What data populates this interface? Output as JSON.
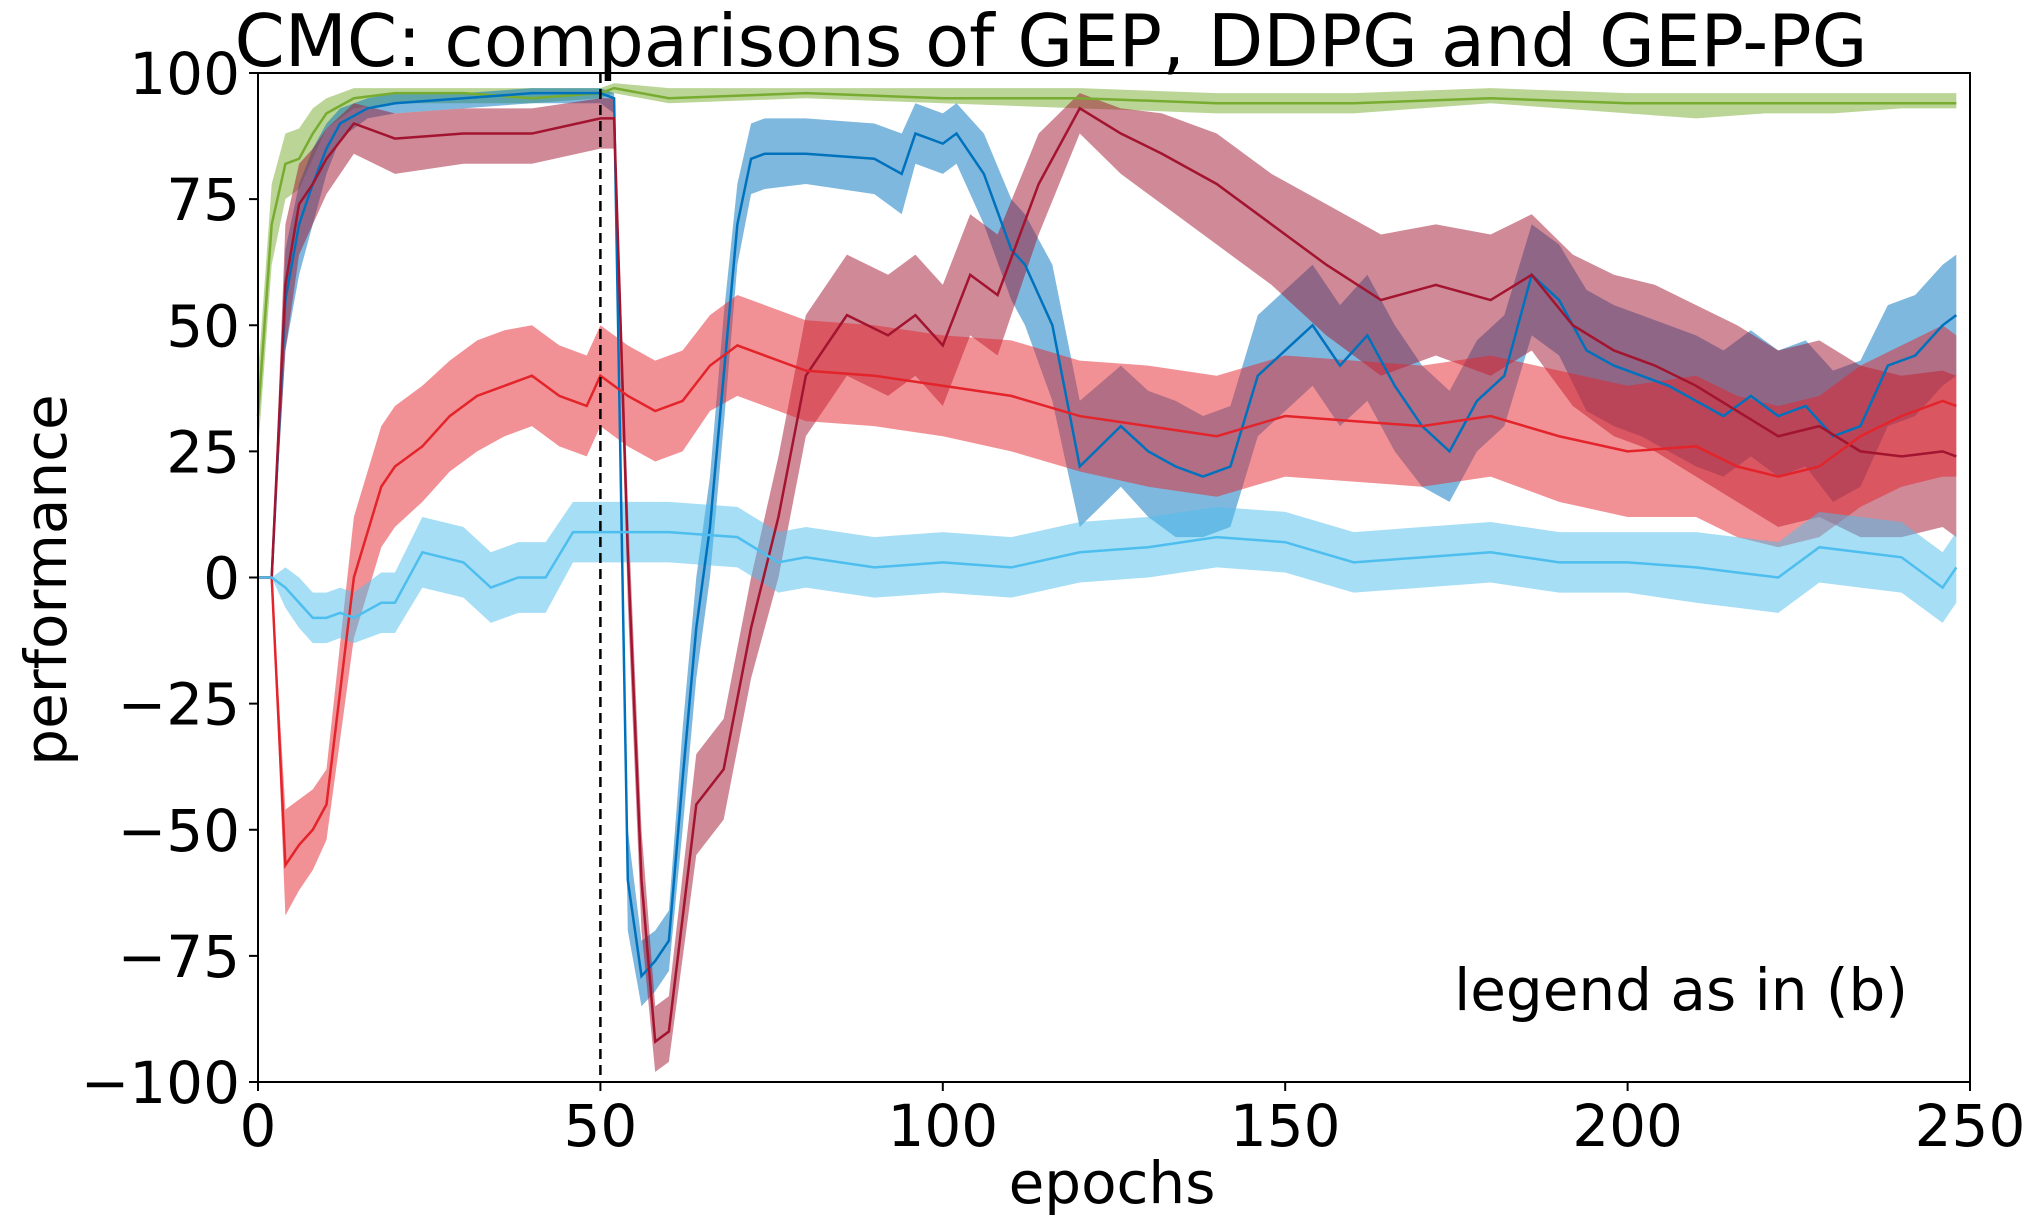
{
  "chart_data": {
    "type": "line",
    "title": "CMC: comparisons of GEP, DDPG and GEP-PG",
    "xlabel": "epochs",
    "ylabel": "performance",
    "xlim": [
      0,
      250
    ],
    "ylim": [
      -100,
      100
    ],
    "xticks": [
      0,
      50,
      100,
      150,
      200,
      250
    ],
    "xtick_labels": [
      "0",
      "50",
      "100",
      "150",
      "200",
      "250"
    ],
    "yticks": [
      -100,
      -75,
      -50,
      -25,
      0,
      25,
      50,
      75,
      100
    ],
    "ytick_labels": [
      "−100",
      "−75",
      "−50",
      "−25",
      "0",
      "25",
      "50",
      "75",
      "100"
    ],
    "vline_x": 50,
    "annotation": "legend as in (b)",
    "grid": false,
    "series": [
      {
        "color": "#77ac30",
        "x": [
          0,
          2,
          4,
          6,
          8,
          10,
          14,
          20,
          30,
          40,
          50,
          52,
          60,
          80,
          100,
          120,
          140,
          160,
          180,
          200,
          210,
          220,
          230,
          240,
          248
        ],
        "y": [
          32,
          70,
          82,
          83,
          88,
          92,
          95,
          96,
          96,
          95,
          96,
          97,
          95,
          96,
          95,
          95,
          94,
          94,
          95,
          94,
          94,
          94,
          94,
          94,
          94
        ],
        "lower": [
          25,
          62,
          75,
          77,
          83,
          89,
          93,
          94,
          94,
          94,
          95,
          96,
          94,
          95,
          94,
          93,
          92,
          92,
          94,
          92,
          91,
          92,
          92,
          93,
          93
        ],
        "upper": [
          40,
          78,
          88,
          89,
          93,
          95,
          97,
          97,
          97,
          97,
          97,
          98,
          97,
          97,
          97,
          97,
          96,
          96,
          97,
          96,
          96,
          96,
          96,
          96,
          96
        ]
      },
      {
        "color": "#0072bd",
        "x": [
          0,
          2,
          4,
          6,
          8,
          10,
          12,
          16,
          20,
          30,
          40,
          50,
          52,
          54,
          56,
          58,
          60,
          62,
          64,
          66,
          68,
          70,
          72,
          74,
          80,
          90,
          94,
          96,
          100,
          102,
          106,
          110,
          112,
          116,
          120,
          126,
          130,
          134,
          138,
          142,
          146,
          150,
          154,
          158,
          162,
          166,
          170,
          174,
          178,
          182,
          186,
          190,
          194,
          198,
          202,
          206,
          210,
          214,
          218,
          222,
          226,
          230,
          234,
          238,
          242,
          246,
          248
        ],
        "y": [
          0,
          0,
          55,
          70,
          78,
          85,
          90,
          93,
          94,
          95,
          96,
          96,
          95,
          -60,
          -79,
          -76,
          -72,
          -40,
          -10,
          10,
          40,
          70,
          83,
          84,
          84,
          83,
          80,
          88,
          86,
          88,
          80,
          65,
          62,
          50,
          22,
          30,
          25,
          22,
          20,
          22,
          40,
          45,
          50,
          42,
          48,
          38,
          30,
          25,
          35,
          40,
          60,
          55,
          45,
          42,
          40,
          38,
          35,
          32,
          36,
          32,
          34,
          28,
          30,
          42,
          44,
          50,
          52
        ],
        "lower": [
          0,
          0,
          45,
          60,
          70,
          80,
          87,
          91,
          92,
          93,
          94,
          94,
          92,
          -70,
          -85,
          -82,
          -78,
          -50,
          -20,
          0,
          30,
          62,
          76,
          77,
          78,
          76,
          72,
          82,
          80,
          82,
          70,
          55,
          50,
          35,
          10,
          18,
          12,
          8,
          8,
          10,
          28,
          33,
          38,
          30,
          35,
          25,
          18,
          15,
          25,
          30,
          48,
          44,
          33,
          30,
          28,
          25,
          22,
          20,
          24,
          20,
          22,
          15,
          18,
          30,
          32,
          38,
          40
        ],
        "upper": [
          0,
          0,
          65,
          78,
          85,
          90,
          93,
          95,
          96,
          96,
          97,
          97,
          96,
          -50,
          -72,
          -70,
          -66,
          -30,
          0,
          20,
          52,
          78,
          90,
          91,
          91,
          90,
          88,
          94,
          92,
          94,
          88,
          75,
          72,
          62,
          35,
          42,
          37,
          35,
          32,
          34,
          52,
          57,
          62,
          54,
          60,
          50,
          42,
          37,
          47,
          52,
          70,
          66,
          57,
          54,
          52,
          50,
          48,
          45,
          49,
          45,
          47,
          41,
          43,
          54,
          56,
          62,
          64
        ]
      },
      {
        "color": "#a2142f",
        "x": [
          0,
          2,
          4,
          6,
          8,
          10,
          14,
          20,
          30,
          40,
          50,
          52,
          54,
          56,
          58,
          60,
          64,
          68,
          72,
          76,
          80,
          86,
          92,
          96,
          100,
          104,
          108,
          114,
          120,
          126,
          132,
          140,
          148,
          156,
          164,
          172,
          180,
          186,
          192,
          198,
          204,
          210,
          216,
          222,
          228,
          234,
          240,
          246,
          248
        ],
        "y": [
          0,
          0,
          58,
          74,
          78,
          83,
          90,
          87,
          88,
          88,
          91,
          91,
          5,
          -60,
          -92,
          -90,
          -45,
          -38,
          -10,
          12,
          40,
          52,
          48,
          52,
          46,
          60,
          56,
          78,
          93,
          88,
          84,
          78,
          70,
          62,
          55,
          58,
          55,
          60,
          50,
          45,
          42,
          38,
          33,
          28,
          30,
          25,
          24,
          25,
          24
        ],
        "lower": [
          0,
          0,
          45,
          64,
          70,
          76,
          84,
          80,
          82,
          82,
          85,
          85,
          -5,
          -70,
          -98,
          -96,
          -55,
          -48,
          -20,
          0,
          28,
          40,
          36,
          40,
          34,
          48,
          44,
          68,
          88,
          80,
          74,
          66,
          58,
          48,
          40,
          44,
          40,
          45,
          34,
          28,
          25,
          20,
          15,
          10,
          12,
          8,
          8,
          10,
          8
        ],
        "upper": [
          0,
          0,
          70,
          82,
          85,
          89,
          94,
          92,
          93,
          93,
          95,
          95,
          15,
          -50,
          -85,
          -83,
          -35,
          -28,
          0,
          24,
          52,
          64,
          60,
          64,
          58,
          72,
          68,
          88,
          96,
          93,
          92,
          88,
          80,
          74,
          68,
          70,
          68,
          72,
          64,
          60,
          58,
          54,
          50,
          45,
          47,
          42,
          40,
          41,
          40
        ]
      },
      {
        "color": "#e3242b",
        "x": [
          0,
          2,
          4,
          6,
          8,
          10,
          14,
          18,
          20,
          24,
          28,
          32,
          36,
          40,
          44,
          48,
          50,
          54,
          58,
          62,
          66,
          70,
          74,
          80,
          90,
          100,
          110,
          120,
          130,
          140,
          150,
          160,
          170,
          180,
          190,
          200,
          210,
          216,
          222,
          228,
          234,
          240,
          246,
          248
        ],
        "y": [
          0,
          0,
          -57,
          -53,
          -50,
          -45,
          0,
          18,
          22,
          26,
          32,
          36,
          38,
          40,
          36,
          34,
          40,
          36,
          33,
          35,
          42,
          46,
          44,
          41,
          40,
          38,
          36,
          32,
          30,
          28,
          32,
          31,
          30,
          32,
          28,
          25,
          26,
          22,
          20,
          22,
          28,
          32,
          35,
          34
        ],
        "lower": [
          0,
          0,
          -67,
          -62,
          -58,
          -52,
          -12,
          6,
          10,
          15,
          21,
          25,
          28,
          30,
          26,
          24,
          30,
          26,
          23,
          25,
          33,
          36,
          34,
          31,
          30,
          28,
          25,
          21,
          18,
          16,
          20,
          19,
          18,
          20,
          15,
          12,
          12,
          8,
          6,
          8,
          14,
          18,
          20,
          20
        ],
        "upper": [
          0,
          0,
          -46,
          -44,
          -42,
          -38,
          12,
          30,
          34,
          38,
          43,
          47,
          49,
          50,
          46,
          44,
          50,
          46,
          43,
          45,
          52,
          56,
          54,
          51,
          50,
          48,
          47,
          43,
          42,
          40,
          44,
          43,
          42,
          44,
          41,
          38,
          40,
          36,
          34,
          36,
          42,
          46,
          50,
          48
        ]
      },
      {
        "color": "#4dbeee",
        "x": [
          0,
          2,
          4,
          6,
          8,
          10,
          12,
          14,
          18,
          20,
          24,
          30,
          34,
          38,
          42,
          46,
          50,
          60,
          70,
          76,
          80,
          90,
          100,
          110,
          120,
          130,
          140,
          150,
          160,
          170,
          180,
          190,
          200,
          210,
          216,
          222,
          228,
          234,
          240,
          246,
          248
        ],
        "y": [
          0,
          0,
          -2,
          -5,
          -8,
          -8,
          -7,
          -8,
          -5,
          -5,
          5,
          3,
          -2,
          0,
          0,
          9,
          9,
          9,
          8,
          3,
          4,
          2,
          3,
          2,
          5,
          6,
          8,
          7,
          3,
          4,
          5,
          3,
          3,
          2,
          1,
          0,
          6,
          5,
          4,
          -2,
          2
        ],
        "lower": [
          0,
          0,
          -6,
          -10,
          -13,
          -13,
          -12,
          -13,
          -11,
          -11,
          -2,
          -4,
          -9,
          -7,
          -7,
          3,
          3,
          3,
          2,
          -3,
          -2,
          -4,
          -3,
          -4,
          -1,
          0,
          2,
          1,
          -3,
          -2,
          -1,
          -3,
          -3,
          -5,
          -6,
          -7,
          -1,
          -2,
          -3,
          -9,
          -5
        ],
        "upper": [
          0,
          0,
          2,
          0,
          -3,
          -3,
          -2,
          -3,
          1,
          1,
          12,
          10,
          5,
          7,
          7,
          15,
          15,
          15,
          14,
          9,
          10,
          8,
          9,
          8,
          11,
          12,
          14,
          13,
          9,
          10,
          11,
          9,
          9,
          9,
          8,
          7,
          13,
          12,
          11,
          5,
          9
        ]
      }
    ]
  }
}
